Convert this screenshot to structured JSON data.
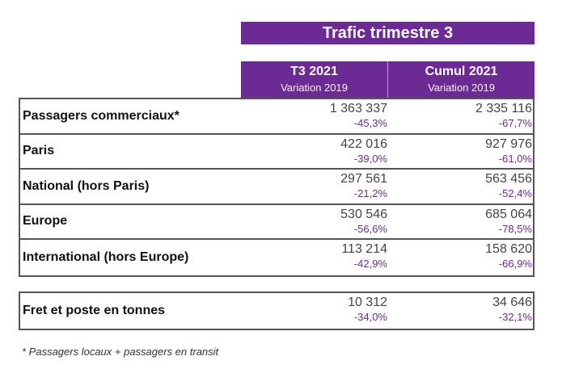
{
  "title": "Trafic trimestre 3",
  "columns": [
    {
      "title": "T3 2021",
      "subtitle": "Variation 2019"
    },
    {
      "title": "Cumul 2021",
      "subtitle": "Variation 2019"
    }
  ],
  "rows": [
    {
      "label": "Passagers commerciaux*",
      "t3": "1 363 337",
      "t3_var": "-45,3%",
      "cumul": "2 335 116",
      "cumul_var": "-67,7%"
    },
    {
      "label": "Paris",
      "t3": "422 016",
      "t3_var": "-39,0%",
      "cumul": "927 976",
      "cumul_var": "-61,0%"
    },
    {
      "label": "National (hors Paris)",
      "t3": "297 561",
      "t3_var": "-21,2%",
      "cumul": "563 456",
      "cumul_var": "-52,4%"
    },
    {
      "label": "Europe",
      "t3": "530 546",
      "t3_var": "-56,6%",
      "cumul": "685 064",
      "cumul_var": "-78,5%"
    },
    {
      "label": "International (hors Europe)",
      "t3": "113 214",
      "t3_var": "-42,9%",
      "cumul": "158 620",
      "cumul_var": "-66,9%"
    }
  ],
  "freight": {
    "label": "Fret et poste en tonnes",
    "t3": "10 312",
    "t3_var": "-34,0%",
    "cumul": "34 646",
    "cumul_var": "-32,1%"
  },
  "footnote": "* Passagers locaux + passagers en transit",
  "colors": {
    "accent": "#6b2a94"
  }
}
